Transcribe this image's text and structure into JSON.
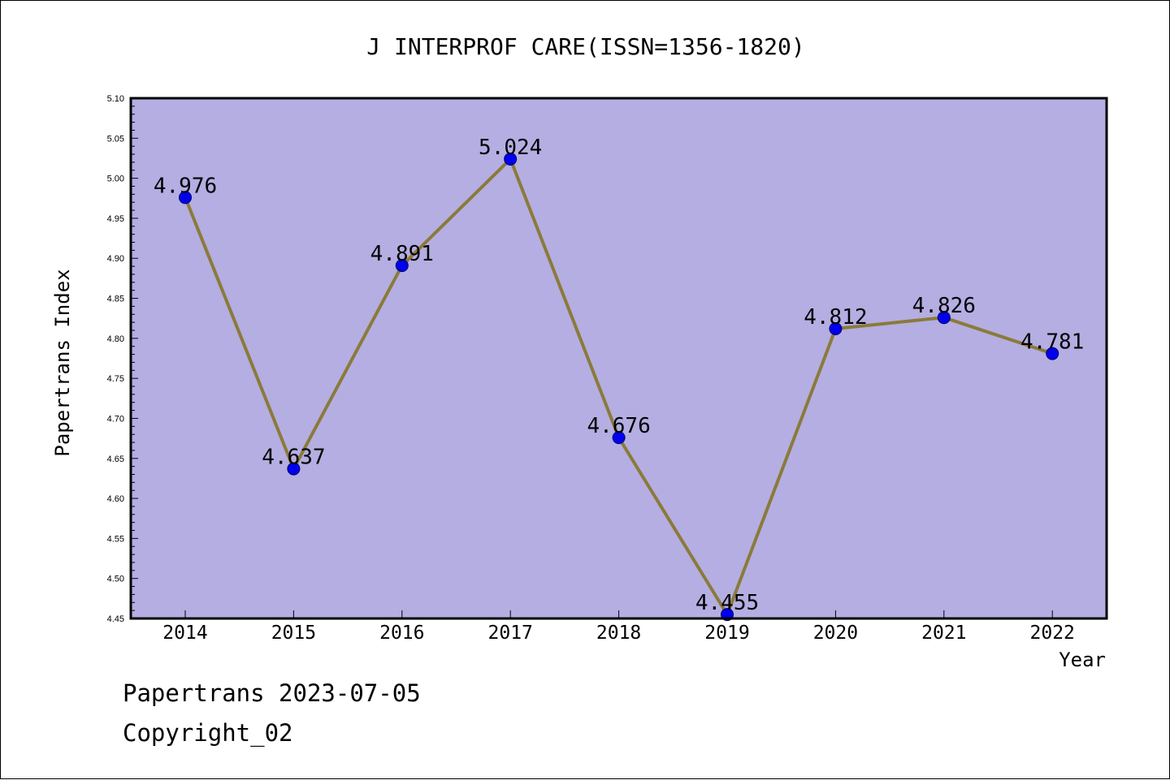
{
  "footer": {
    "line1": "Papertrans 2023-07-05",
    "line2": "Copyright_02"
  },
  "chart_data": {
    "type": "line",
    "title": "J INTERPROF CARE(ISSN=1356-1820)",
    "xlabel": "Year",
    "ylabel": "Papertrans Index",
    "categories": [
      "2014",
      "2015",
      "2016",
      "2017",
      "2018",
      "2019",
      "2020",
      "2021",
      "2022"
    ],
    "values": [
      4.976,
      4.637,
      4.891,
      5.024,
      4.676,
      4.455,
      4.812,
      4.826,
      4.781
    ],
    "data_labels": [
      "4.976",
      "4.637",
      "4.891",
      "5.024",
      "4.676",
      "4.455",
      "4.812",
      "4.826",
      "4.781"
    ],
    "ylim": [
      4.45,
      5.1
    ],
    "yticks": [
      "4.45",
      "4.50",
      "4.55",
      "4.60",
      "4.65",
      "4.70",
      "4.75",
      "4.80",
      "4.85",
      "4.90",
      "4.95",
      "5.00",
      "5.05",
      "5.10"
    ],
    "grid": false,
    "colors": {
      "plot_background": "#b4aee2",
      "line": "#8b7a3a",
      "marker": "#0000ee",
      "frame": "#000000"
    }
  }
}
